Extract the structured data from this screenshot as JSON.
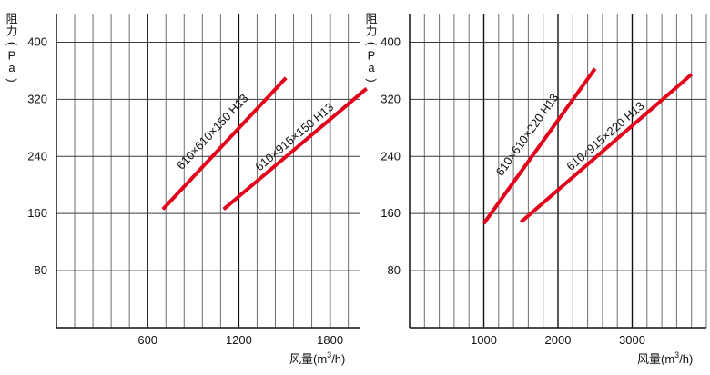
{
  "chart_data": [
    {
      "type": "line",
      "ylabel_chars": [
        "阻",
        "力",
        "(",
        "P",
        "a",
        ")"
      ],
      "xlabel": {
        "main": "风量(m",
        "sup": "3",
        "tail": "/h)"
      },
      "xlim": [
        0,
        2000
      ],
      "ylim": [
        0,
        440
      ],
      "x_ticks": [
        600,
        1200,
        1800
      ],
      "x_tick_labels": [
        "600",
        "1200",
        "1800"
      ],
      "y_ticks": [
        80,
        160,
        240,
        320,
        400
      ],
      "y_tick_labels": [
        "80",
        "160",
        "240",
        "320",
        "400"
      ],
      "grid": {
        "x_minor_step": 120,
        "x_major": [
          600,
          1200,
          1800
        ],
        "y_step": 80
      },
      "series": [
        {
          "name": "610×610×150 H13",
          "x": [
            700,
            1510
          ],
          "y": [
            166,
            350
          ],
          "color": "#e3001b"
        },
        {
          "name": "610×915×150 H13",
          "x": [
            1100,
            2040
          ],
          "y": [
            166,
            335
          ],
          "color": "#e3001b"
        }
      ]
    },
    {
      "type": "line",
      "ylabel_chars": [
        "阻",
        "力",
        "(",
        "P",
        "a",
        ")"
      ],
      "xlabel": {
        "main": "风量(m",
        "sup": "3",
        "tail": "/h)"
      },
      "xlim": [
        0,
        4000
      ],
      "ylim": [
        0,
        440
      ],
      "x_ticks": [
        1000,
        2000,
        3000
      ],
      "x_tick_labels": [
        "1000",
        "2000",
        "3000"
      ],
      "y_ticks": [
        80,
        160,
        240,
        320,
        400
      ],
      "y_tick_labels": [
        "80",
        "160",
        "240",
        "320",
        "400"
      ],
      "grid": {
        "x_minor_step": 200,
        "x_major": [
          1000,
          2000,
          3000
        ],
        "y_step": 80
      },
      "series": [
        {
          "name": "610×610×220 H13",
          "x": [
            1000,
            2500
          ],
          "y": [
            146,
            363
          ],
          "color": "#e3001b"
        },
        {
          "name": "610×915×220 H13",
          "x": [
            1500,
            3800
          ],
          "y": [
            148,
            355
          ],
          "color": "#e3001b"
        }
      ]
    }
  ]
}
